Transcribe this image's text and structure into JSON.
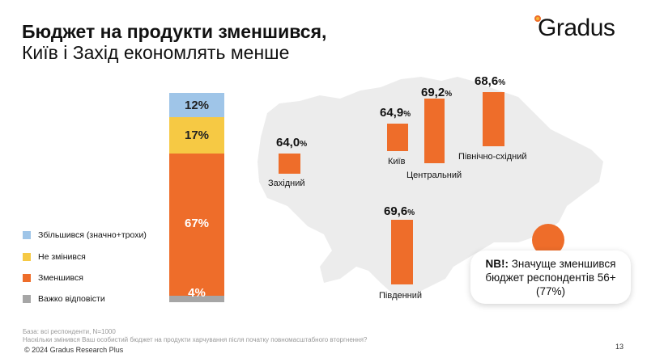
{
  "title": {
    "line1": "Бюджет на продукти зменшився,",
    "line2": "Київ і Захід економлять менше"
  },
  "logo": "Gradus",
  "colors": {
    "increased": "#9fc5e8",
    "unchanged": "#f6c944",
    "decreased": "#ee6d2a",
    "hard_to_say": "#a6a6a6",
    "map": "#ececec"
  },
  "stacked_bar": [
    {
      "label": "Збільшився (значно+трохи)",
      "value": "12%"
    },
    {
      "label": "Не змінився",
      "value": "17%"
    },
    {
      "label": "Зменшився",
      "value": "67%"
    },
    {
      "label": "Важко відповісти",
      "value": "4%"
    }
  ],
  "regions": [
    {
      "name": "Західний",
      "value": "64,0",
      "unit": "%"
    },
    {
      "name": "Київ",
      "value": "64,9",
      "unit": "%"
    },
    {
      "name": "Центральний",
      "value": "69,2",
      "unit": "%"
    },
    {
      "name": "Північно-східний",
      "value": "68,6",
      "unit": "%"
    },
    {
      "name": "Південний",
      "value": "69,6",
      "unit": "%"
    }
  ],
  "nb": {
    "bold": "NB!:",
    "text": " Значуще зменшився бюджет респондентів 56+ (77%)"
  },
  "footer": {
    "base": "База: всі респонденти, N=1000",
    "question": "Наскільки змінився Ваш особистий бюджет на продукти харчування після початку повномасштабного вторгнення?",
    "copyright": "© 2024 Gradus Research Plus",
    "page": "13"
  }
}
